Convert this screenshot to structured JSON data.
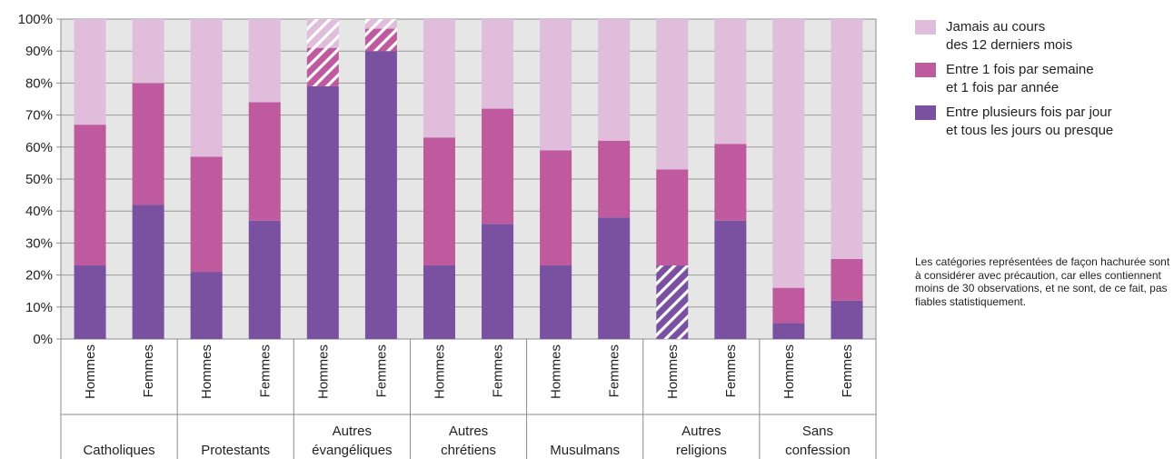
{
  "chart_data": {
    "type": "bar",
    "stacked": true,
    "groups": [
      "Catholiques",
      "Protestants",
      "Autres évangéliques",
      "Autres chrétiens",
      "Musulmans",
      "Autres religions",
      "Sans confession"
    ],
    "subcategories": [
      "Hommes",
      "Femmes"
    ],
    "series": [
      {
        "name": "Entre plusieurs fois par jour\net tous les jours ou presque",
        "color": "#7a50a0",
        "values": [
          23,
          42,
          21,
          37,
          79,
          90,
          23,
          36,
          23,
          38,
          23,
          37,
          5,
          12
        ]
      },
      {
        "name": "Entre 1 fois par semaine\net 1 fois par année",
        "color": "#bf5a9f",
        "values": [
          44,
          38,
          36,
          37,
          12,
          7,
          40,
          36,
          36,
          24,
          30,
          24,
          11,
          13
        ]
      },
      {
        "name": "Jamais au cours\ndes 12 derniers mois",
        "color": "#e0bddb",
        "values": [
          33,
          20,
          43,
          26,
          9,
          3,
          37,
          28,
          41,
          38,
          47,
          39,
          84,
          75
        ]
      }
    ],
    "hatched": [
      {
        "bar": 4,
        "series": [
          1,
          2
        ]
      },
      {
        "bar": 5,
        "series": [
          1,
          2
        ]
      },
      {
        "bar": 10,
        "series": [
          0
        ]
      }
    ],
    "ylim": [
      0,
      100
    ],
    "y_ticks": [
      "0%",
      "10%",
      "20%",
      "30%",
      "40%",
      "50%",
      "60%",
      "70%",
      "80%",
      "90%",
      "100%"
    ],
    "grid": true,
    "legend_position": "top-right"
  },
  "legend": [
    {
      "label": "Jamais au cours\ndes 12 derniers mois",
      "color": "#e0bddb"
    },
    {
      "label": "Entre 1 fois par semaine\net 1 fois par année",
      "color": "#bf5a9f"
    },
    {
      "label": "Entre plusieurs fois par jour\net tous les jours ou presque",
      "color": "#7a50a0"
    }
  ],
  "note": "Les catégories représentées de façon hachurée sont à considérer avec précaution, car elles contiennent moins de 30 observations, et ne sont, de ce fait, pas fiables statistiquement."
}
